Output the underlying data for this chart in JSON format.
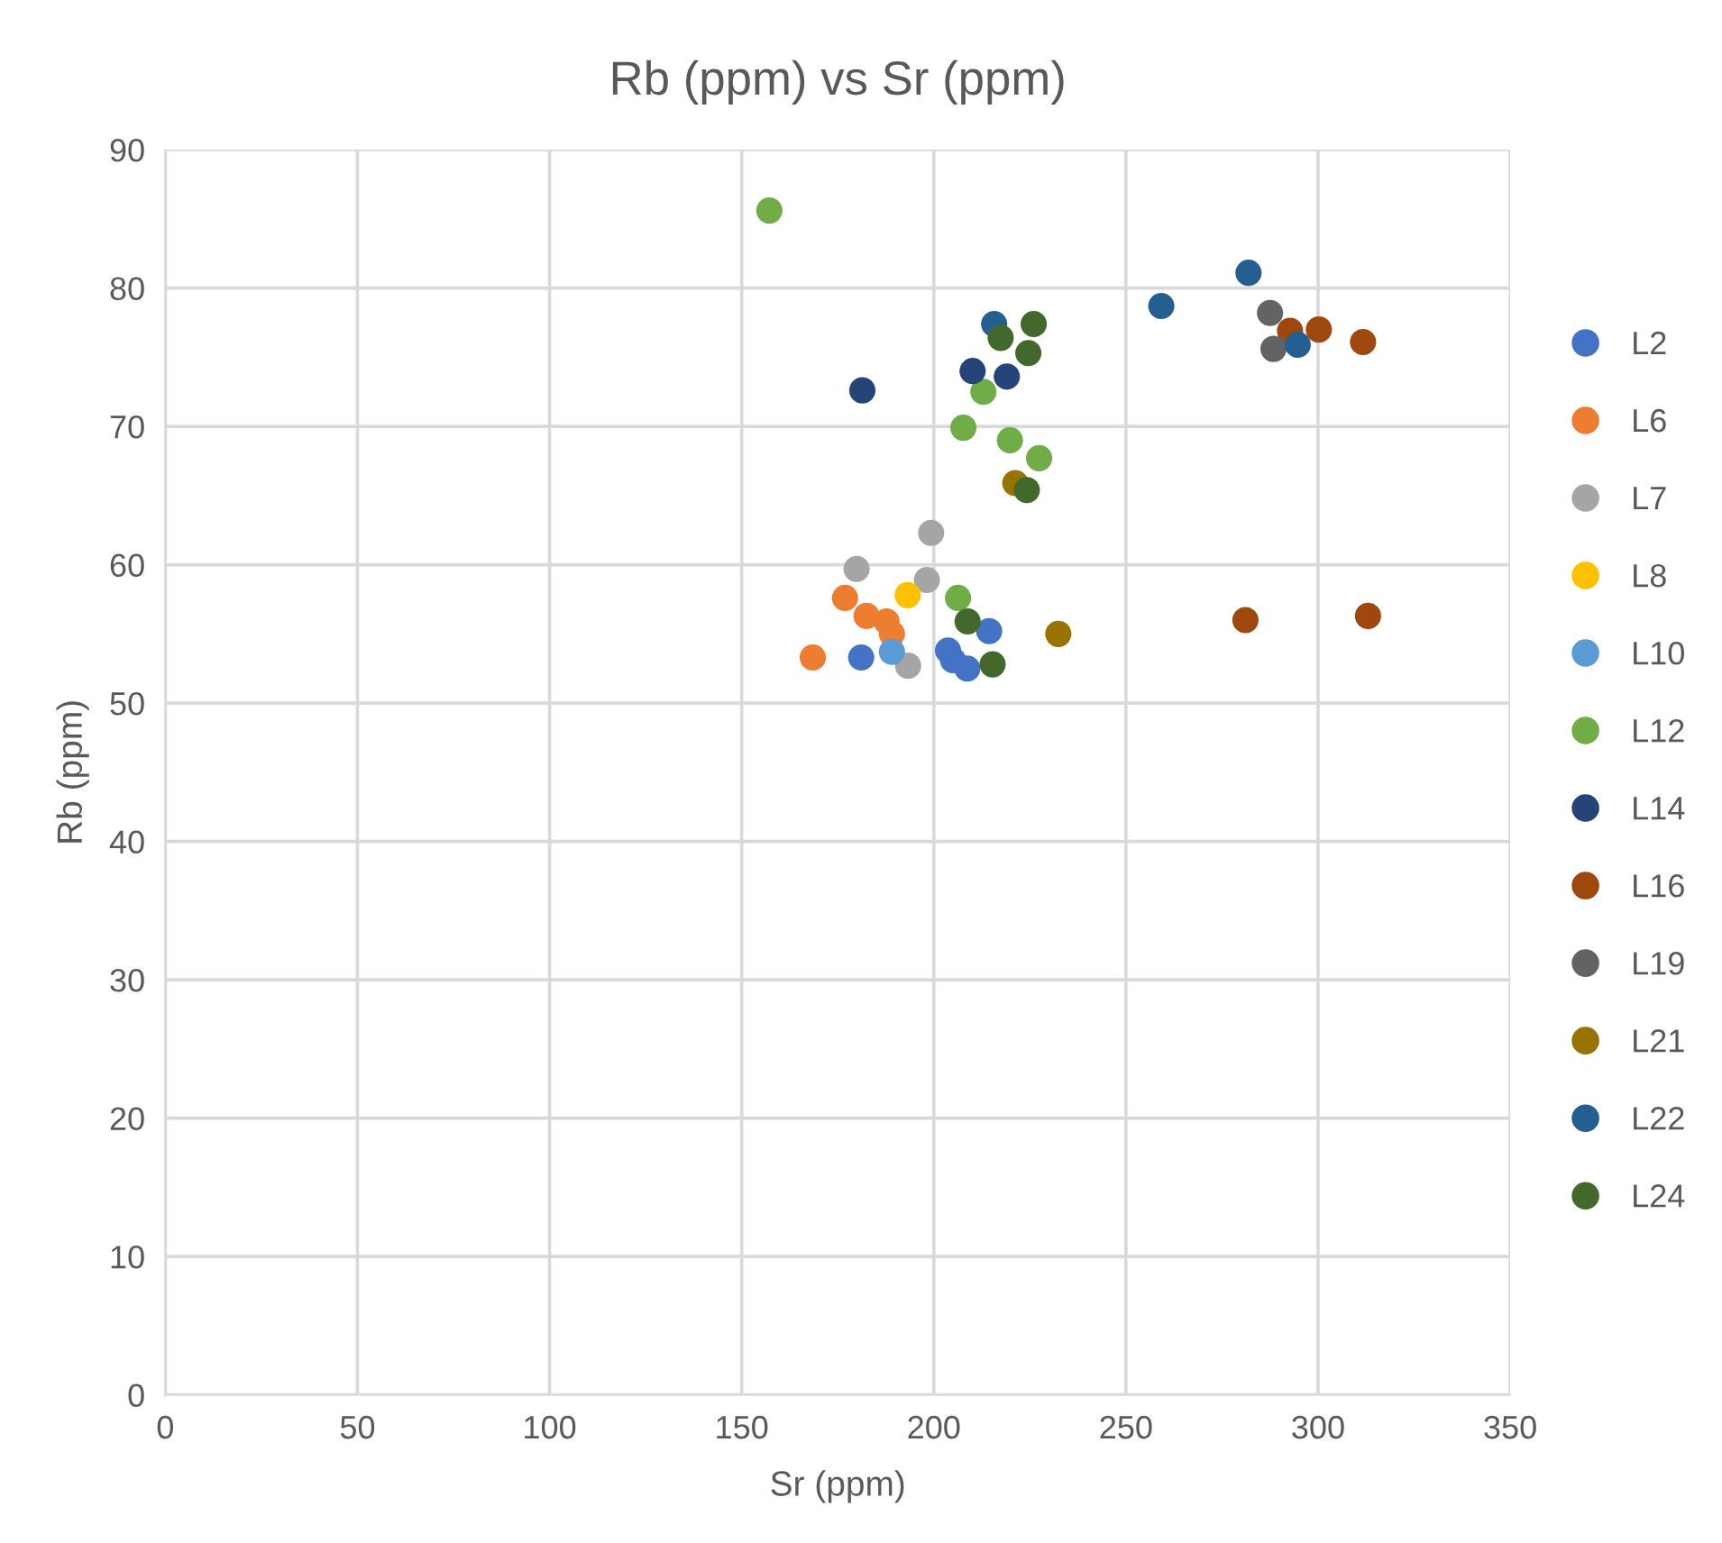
{
  "chart_data": {
    "type": "scatter",
    "title": "Rb (ppm) vs Sr (ppm)",
    "xlabel": "Sr (ppm)",
    "ylabel": "Rb (ppm)",
    "xlim": [
      0,
      350
    ],
    "xticks": [
      0,
      50,
      100,
      150,
      200,
      250,
      300,
      350
    ],
    "ylim": [
      0,
      90
    ],
    "yticks": [
      0,
      10,
      20,
      30,
      40,
      50,
      60,
      70,
      80,
      90
    ],
    "grid": true,
    "legend": "right",
    "marker": "circle",
    "series": [
      {
        "name": "L2",
        "color": "#4472c4",
        "x": [
          181.1,
          203.7,
          205.0,
          208.7,
          214.4
        ],
        "values": [
          53.3,
          53.8,
          53.1,
          52.5,
          55.2
        ]
      },
      {
        "name": "L6",
        "color": "#ed7d31",
        "x": [
          168.5,
          176.9,
          182.5,
          187.7,
          189.1
        ],
        "values": [
          53.3,
          57.6,
          56.3,
          55.9,
          55.0
        ]
      },
      {
        "name": "L7",
        "color": "#a5a5a5",
        "x": [
          199.3,
          179.9,
          198.2,
          193.3
        ],
        "values": [
          62.3,
          59.7,
          58.9,
          52.7
        ]
      },
      {
        "name": "L8",
        "color": "#ffc000",
        "x": [
          193.2
        ],
        "values": [
          57.8
        ]
      },
      {
        "name": "L10",
        "color": "#5b9bd5",
        "x": [
          189.1
        ],
        "values": [
          53.7
        ]
      },
      {
        "name": "L12",
        "color": "#70ad47",
        "x": [
          157.2,
          212.9,
          207.7,
          219.8,
          227.4,
          206.3
        ],
        "values": [
          85.6,
          72.5,
          69.9,
          69.0,
          67.7,
          57.6
        ]
      },
      {
        "name": "L14",
        "color": "#264478",
        "x": [
          181.4,
          210.1,
          219.0
        ],
        "values": [
          72.6,
          74.0,
          73.6
        ]
      },
      {
        "name": "L16",
        "color": "#9e480e",
        "x": [
          281.1,
          313.0,
          292.7,
          300.2,
          311.7
        ],
        "values": [
          56.0,
          56.3,
          76.9,
          77.0,
          76.1
        ]
      },
      {
        "name": "L19",
        "color": "#636363",
        "x": [
          287.5,
          288.4
        ],
        "values": [
          78.2,
          75.6
        ]
      },
      {
        "name": "L21",
        "color": "#997300",
        "x": [
          232.4,
          221.2
        ],
        "values": [
          55.0,
          65.9
        ]
      },
      {
        "name": "L22",
        "color": "#255e91",
        "x": [
          215.7,
          259.2,
          281.9,
          294.7
        ],
        "values": [
          77.4,
          78.7,
          81.1,
          75.9
        ]
      },
      {
        "name": "L24",
        "color": "#43682b",
        "x": [
          226.0,
          217.4,
          224.6,
          224.2,
          208.8,
          215.3
        ],
        "values": [
          77.4,
          76.4,
          75.3,
          65.4,
          55.9,
          52.8
        ]
      }
    ]
  }
}
